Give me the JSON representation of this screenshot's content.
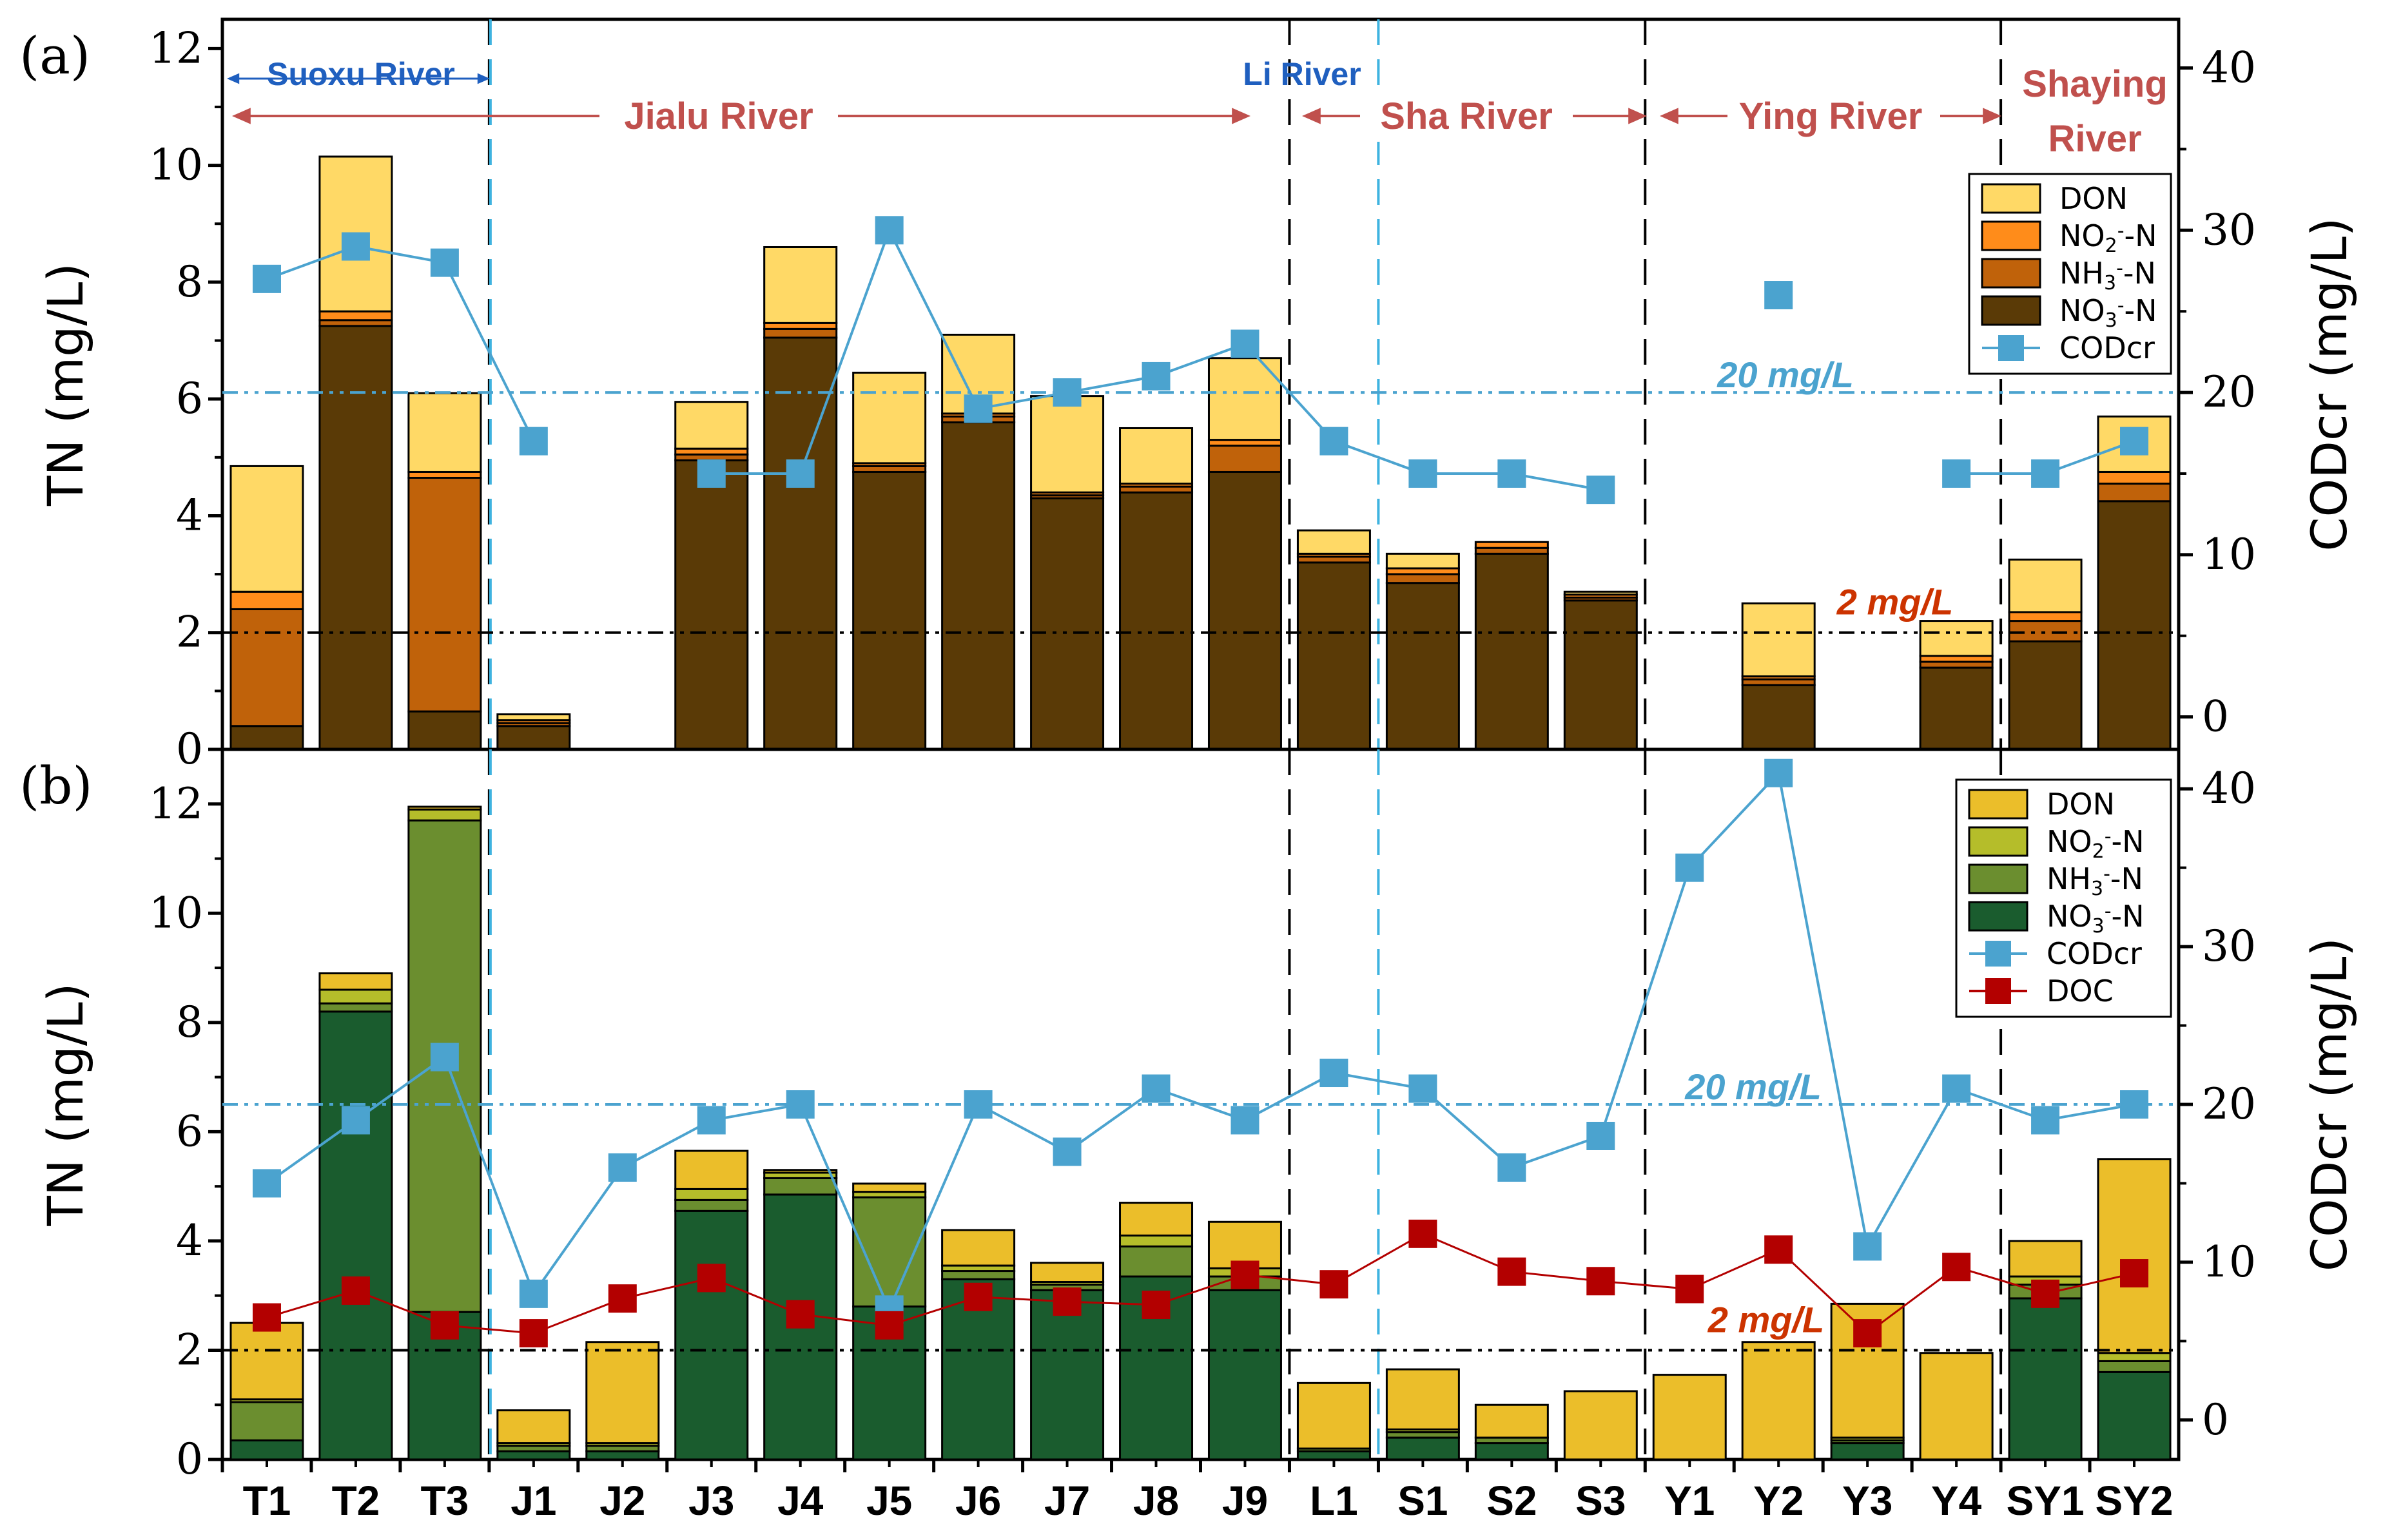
{
  "chart_data": [
    {
      "panel_label": "(a)",
      "type": "bar",
      "stacked": true,
      "categories": [
        "T1",
        "T2",
        "T3",
        "J1",
        "J2",
        "J3",
        "J4",
        "J5",
        "J6",
        "J7",
        "J8",
        "J9",
        "L1",
        "S1",
        "S2",
        "S3",
        "Y1",
        "Y2",
        "Y3",
        "Y4",
        "SY1",
        "SY2"
      ],
      "ylabel": "TN (mg/L)",
      "y2label": "CODcr (mg/L)",
      "ylim": [
        0,
        12.5
      ],
      "y2lim": [
        -2,
        43
      ],
      "yticks": [
        "0",
        "2",
        "4",
        "6",
        "8",
        "10",
        "12"
      ],
      "y2ticks": [
        "0",
        "10",
        "20",
        "30",
        "40"
      ],
      "series": [
        {
          "name": "NO3--N",
          "legend": [
            "NO",
            "3",
            "-",
            "-N"
          ],
          "color": "#5a3a06",
          "values": [
            0.4,
            7.25,
            0.65,
            0.4,
            0,
            4.95,
            7.05,
            4.75,
            5.6,
            4.3,
            4.4,
            4.75,
            3.2,
            2.85,
            3.35,
            2.55,
            0,
            1.1,
            0,
            1.4,
            1.85,
            4.25
          ]
        },
        {
          "name": "NH3--N",
          "legend": [
            "NH",
            "3",
            "-",
            "-N"
          ],
          "color": "#c0620a",
          "values": [
            2.0,
            0.1,
            4.0,
            0.05,
            0,
            0.1,
            0.15,
            0.1,
            0.1,
            0.05,
            0.1,
            0.45,
            0.1,
            0.15,
            0.1,
            0.05,
            0,
            0.1,
            0,
            0.1,
            0.35,
            0.3
          ]
        },
        {
          "name": "NO2--N",
          "legend": [
            "NO",
            "2",
            "-",
            "-N"
          ],
          "color": "#ff8c1a",
          "values": [
            0.3,
            0.15,
            0.1,
            0.05,
            0,
            0.1,
            0.1,
            0.05,
            0.05,
            0.05,
            0.05,
            0.1,
            0.05,
            0.1,
            0.1,
            0.05,
            0,
            0.05,
            0,
            0.1,
            0.15,
            0.2
          ]
        },
        {
          "name": "DON",
          "legend": [
            "DON",
            "",
            "",
            ""
          ],
          "color": "#ffd966",
          "values": [
            2.15,
            2.65,
            1.35,
            0.1,
            0,
            0.8,
            1.3,
            1.55,
            1.35,
            1.65,
            0.95,
            1.4,
            0.4,
            0.25,
            0,
            0.05,
            0,
            1.25,
            0,
            0.6,
            0.9,
            0.95
          ]
        }
      ],
      "codcr": {
        "name": "CODcr",
        "color": "#4ba3cf",
        "values": [
          27,
          29,
          28,
          17,
          null,
          15,
          15,
          30,
          19,
          20,
          21,
          23,
          17,
          15,
          15,
          14,
          null,
          26,
          null,
          15,
          15,
          17
        ]
      },
      "thresholds": [
        {
          "label": "20 mg/L",
          "axis": "y2",
          "value": 20,
          "color": "#4ba3cf"
        },
        {
          "label": "2 mg/L",
          "axis": "y",
          "value": 2,
          "color": "#000000",
          "label_color": "#cc3300"
        }
      ],
      "rivers": [
        {
          "name": "Suoxu River",
          "style": "blue"
        },
        {
          "name": "Jialu River",
          "style": "red"
        },
        {
          "name": "Li River",
          "style": "blue"
        },
        {
          "name": "Sha River",
          "style": "red"
        },
        {
          "name": "Ying River",
          "style": "red"
        },
        {
          "name": "Shaying",
          "style": "red"
        },
        {
          "name": "River",
          "style": "red"
        }
      ]
    },
    {
      "panel_label": "(b)",
      "type": "bar",
      "stacked": true,
      "categories": [
        "T1",
        "T2",
        "T3",
        "J1",
        "J2",
        "J3",
        "J4",
        "J5",
        "J6",
        "J7",
        "J8",
        "J9",
        "L1",
        "S1",
        "S2",
        "S3",
        "Y1",
        "Y2",
        "Y3",
        "Y4",
        "SY1",
        "SY2"
      ],
      "ylabel": "TN (mg/L)",
      "y2label": "CODcr (mg/L)",
      "ylim": [
        0,
        13
      ],
      "y2lim": [
        -2.5,
        42.5
      ],
      "yticks": [
        "0",
        "2",
        "4",
        "6",
        "8",
        "10",
        "12"
      ],
      "y2ticks": [
        "0",
        "10",
        "20",
        "30",
        "40"
      ],
      "series": [
        {
          "name": "NO3--N",
          "legend": [
            "NO",
            "3",
            "-",
            "-N"
          ],
          "color": "#1a5c2e",
          "values": [
            0.35,
            8.2,
            2.7,
            0.15,
            0.15,
            4.55,
            4.85,
            2.8,
            3.3,
            3.1,
            3.35,
            3.1,
            0.15,
            0.4,
            0.3,
            0,
            0,
            0,
            0.3,
            0,
            2.95,
            1.6
          ]
        },
        {
          "name": "NH3--N",
          "legend": [
            "NH",
            "3",
            "-",
            "-N"
          ],
          "color": "#6b8e2f",
          "values": [
            0.7,
            0.15,
            9.0,
            0.1,
            0.1,
            0.2,
            0.3,
            2.0,
            0.15,
            0.1,
            0.55,
            0.25,
            0.05,
            0.1,
            0.1,
            0,
            0,
            0,
            0.05,
            0,
            0.25,
            0.2
          ]
        },
        {
          "name": "NO2--N",
          "legend": [
            "NO",
            "2",
            "-",
            "-N"
          ],
          "color": "#b5bd2a",
          "values": [
            0.05,
            0.25,
            0.2,
            0.05,
            0.05,
            0.2,
            0.1,
            0.1,
            0.1,
            0.05,
            0.2,
            0.15,
            0,
            0.05,
            0,
            0,
            0,
            0,
            0.05,
            0,
            0.15,
            0.15
          ]
        },
        {
          "name": "DON",
          "legend": [
            "DON",
            "",
            "",
            ""
          ],
          "color": "#ebbe2a",
          "values": [
            1.4,
            0.3,
            0.05,
            0.6,
            1.85,
            0.7,
            0.05,
            0.15,
            0.65,
            0.35,
            0.6,
            0.85,
            1.2,
            1.1,
            0.6,
            1.25,
            1.55,
            2.15,
            2.45,
            1.95,
            0.65,
            3.55
          ]
        }
      ],
      "codcr": {
        "name": "CODcr",
        "color": "#4ba3cf",
        "values": [
          15,
          19,
          23,
          8,
          16,
          19,
          20,
          7,
          20,
          17,
          21,
          19,
          22,
          21,
          16,
          18,
          35,
          41,
          11,
          21,
          19,
          20
        ]
      },
      "doc": {
        "name": "DOC",
        "color": "#b30000",
        "values": [
          6.5,
          8.2,
          6,
          5.5,
          7.7,
          9,
          6.7,
          6,
          7.8,
          7.5,
          7.3,
          9.2,
          8.6,
          11.8,
          9.4,
          8.8,
          8.3,
          10.8,
          5.5,
          9.7,
          8,
          9.3
        ]
      },
      "thresholds": [
        {
          "label": "20 mg/L",
          "axis": "y2",
          "value": 20,
          "color": "#4ba3cf"
        },
        {
          "label": "2 mg/L",
          "axis": "y",
          "value": 2,
          "color": "#000000",
          "label_color": "#cc3300"
        }
      ]
    }
  ]
}
